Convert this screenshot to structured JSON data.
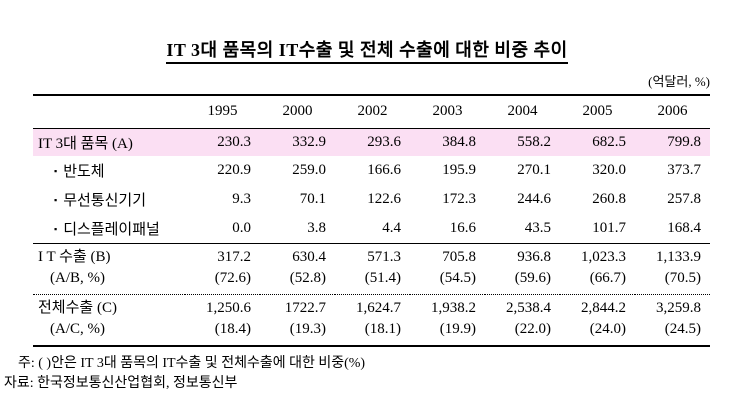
{
  "title": "IT 3대 품목의 IT수출 및 전체 수출에 대한 비중 추이",
  "unit_label": "(억달러, %)",
  "colors": {
    "highlight_row": "#FBDFF3",
    "text": "#000000",
    "rule": "#000000"
  },
  "table": {
    "years": [
      "1995",
      "2000",
      "2002",
      "2003",
      "2004",
      "2005",
      "2006"
    ],
    "rows": [
      {
        "label": "IT 3대 품목 (A)",
        "highlight": true,
        "values": [
          "230.3",
          "332.9",
          "293.6",
          "384.8",
          "558.2",
          "682.5",
          "799.8"
        ]
      },
      {
        "bullet": "▪",
        "label": "반도체",
        "values": [
          "220.9",
          "259.0",
          "166.6",
          "195.9",
          "270.1",
          "320.0",
          "373.7"
        ]
      },
      {
        "bullet": "▪",
        "label": "무선통신기기",
        "values": [
          "9.3",
          "70.1",
          "122.6",
          "172.3",
          "244.6",
          "260.8",
          "257.8"
        ]
      },
      {
        "bullet": "▪",
        "label": "디스플레이패널",
        "values": [
          "0.0",
          "3.8",
          "4.4",
          "16.6",
          "43.5",
          "101.7",
          "168.4"
        ]
      },
      {
        "label": "I T 수출 (B)",
        "sublabel": "(A/B, %)",
        "values": [
          "317.2",
          "630.4",
          "571.3",
          "705.8",
          "936.8",
          "1,023.3",
          "1,133.9"
        ],
        "subvalues": [
          "(72.6)",
          "(52.8)",
          "(51.4)",
          "(54.5)",
          "(59.6)",
          "(66.7)",
          "(70.5)"
        ]
      },
      {
        "label": "전체수출 (C)",
        "sublabel": "(A/C, %)",
        "values": [
          "1,250.6",
          "1722.7",
          "1,624.7",
          "1,938.2",
          "2,538.4",
          "2,844.2",
          "3,259.8"
        ],
        "subvalues": [
          "(18.4)",
          "(19.3)",
          "(18.1)",
          "(19.9)",
          "(22.0)",
          "(24.0)",
          "(24.5)"
        ]
      }
    ]
  },
  "footnotes": {
    "note": "주: (  )안은 IT 3대 품목의 IT수출 및 전체수출에 대한 비중(%)",
    "source": "자료: 한국정보통신산업협회, 정보통신부"
  }
}
